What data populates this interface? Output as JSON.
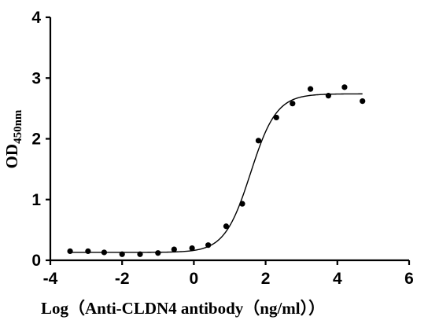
{
  "chart_data": {
    "type": "scatter",
    "title": "",
    "xlabel": "Log（Anti-CLDN4 antibody（ng/ml））",
    "ylabel_main": "OD",
    "ylabel_subscript": "450nm",
    "xlim": [
      -4,
      6
    ],
    "ylim": [
      0,
      4
    ],
    "x_ticks": [
      -4,
      -2,
      0,
      2,
      4,
      6
    ],
    "y_ticks": [
      0,
      1,
      2,
      3,
      4
    ],
    "grid": false,
    "legend": "none",
    "series": [
      {
        "x": [
          -3.45,
          -2.95,
          -2.5,
          -2.0,
          -1.5,
          -1.0,
          -0.55,
          -0.05,
          0.4,
          0.9,
          1.35,
          1.8,
          2.3,
          2.75,
          3.25,
          3.75,
          4.2,
          4.7
        ],
        "y": [
          0.15,
          0.15,
          0.13,
          0.1,
          0.1,
          0.12,
          0.18,
          0.2,
          0.25,
          0.56,
          0.93,
          1.97,
          2.35,
          2.58,
          2.82,
          2.71,
          2.85,
          2.62
        ],
        "fit": {
          "model": "4PL",
          "bottom": 0.13,
          "top": 2.74,
          "log_ec50": 1.58,
          "hill": 1.2,
          "x_range": [
            -3.45,
            4.7
          ]
        }
      }
    ],
    "colors": {
      "axes": "#000000",
      "points": "#000000",
      "curve": "#000000",
      "background": "#ffffff"
    }
  }
}
